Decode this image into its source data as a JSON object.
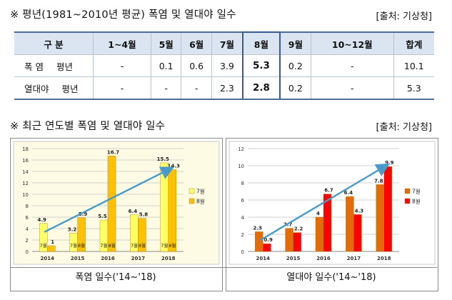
{
  "section1": {
    "heading": "※ 평년(1981~2010년 평균) 폭염 및 열대야 일수",
    "source": "[출처: 기상청]",
    "table": {
      "header_label": "구 분",
      "columns": [
        "1~4월",
        "5월",
        "6월",
        "7월",
        "8월",
        "9월",
        "10~12월",
        "합계"
      ],
      "rows": [
        {
          "label": "폭 염",
          "sub": "평년",
          "values": [
            "-",
            "0.1",
            "0.6",
            "3.9",
            "5.3",
            "0.2",
            "-",
            "10.1"
          ]
        },
        {
          "label": "열대야",
          "sub": "평년",
          "values": [
            "-",
            "-",
            "-",
            "2.3",
            "2.8",
            "0.2",
            "-",
            "5.3"
          ]
        }
      ]
    }
  },
  "section2": {
    "heading": "※ 최근 연도별 폭염 및 열대야 일수",
    "source": "[출처: 기상청]",
    "caption_left": "폭염 일수('14~'18)",
    "caption_right": "열대야 일수('14~'18)"
  },
  "chart_data": [
    {
      "type": "bar",
      "categories": [
        "2014",
        "2015",
        "2016",
        "2017",
        "2018"
      ],
      "series": [
        {
          "name": "7월",
          "values": [
            4.9,
            3.2,
            5.5,
            6.4,
            15.5
          ],
          "color": "#ffff66",
          "bar_label": "7월"
        },
        {
          "name": "8월",
          "values": [
            1,
            5.9,
            16.7,
            5.8,
            14.3
          ],
          "color": "#ffc000",
          "bar_label": "8월"
        }
      ],
      "ylim": [
        0,
        18
      ],
      "yticks": [
        0,
        2,
        4,
        6,
        8,
        10,
        12,
        14,
        16,
        18
      ],
      "grid": true,
      "legend": "right",
      "background": "#fdfbe3",
      "trend_arrow": true
    },
    {
      "type": "bar",
      "categories": [
        "2014",
        "2015",
        "2016",
        "2017",
        "2018"
      ],
      "series": [
        {
          "name": "7월",
          "values": [
            2.3,
            2.7,
            4,
            6.4,
            7.8
          ],
          "color": "#e36c09"
        },
        {
          "name": "8월",
          "values": [
            0.9,
            2.2,
            6.7,
            4.3,
            9.9
          ],
          "color": "#ff0000"
        }
      ],
      "ylim": [
        0,
        12
      ],
      "yticks": [
        0,
        2,
        4,
        6,
        8,
        10,
        12
      ],
      "grid": true,
      "legend": "right",
      "background": "#ffffff",
      "trend_arrow": true
    }
  ]
}
